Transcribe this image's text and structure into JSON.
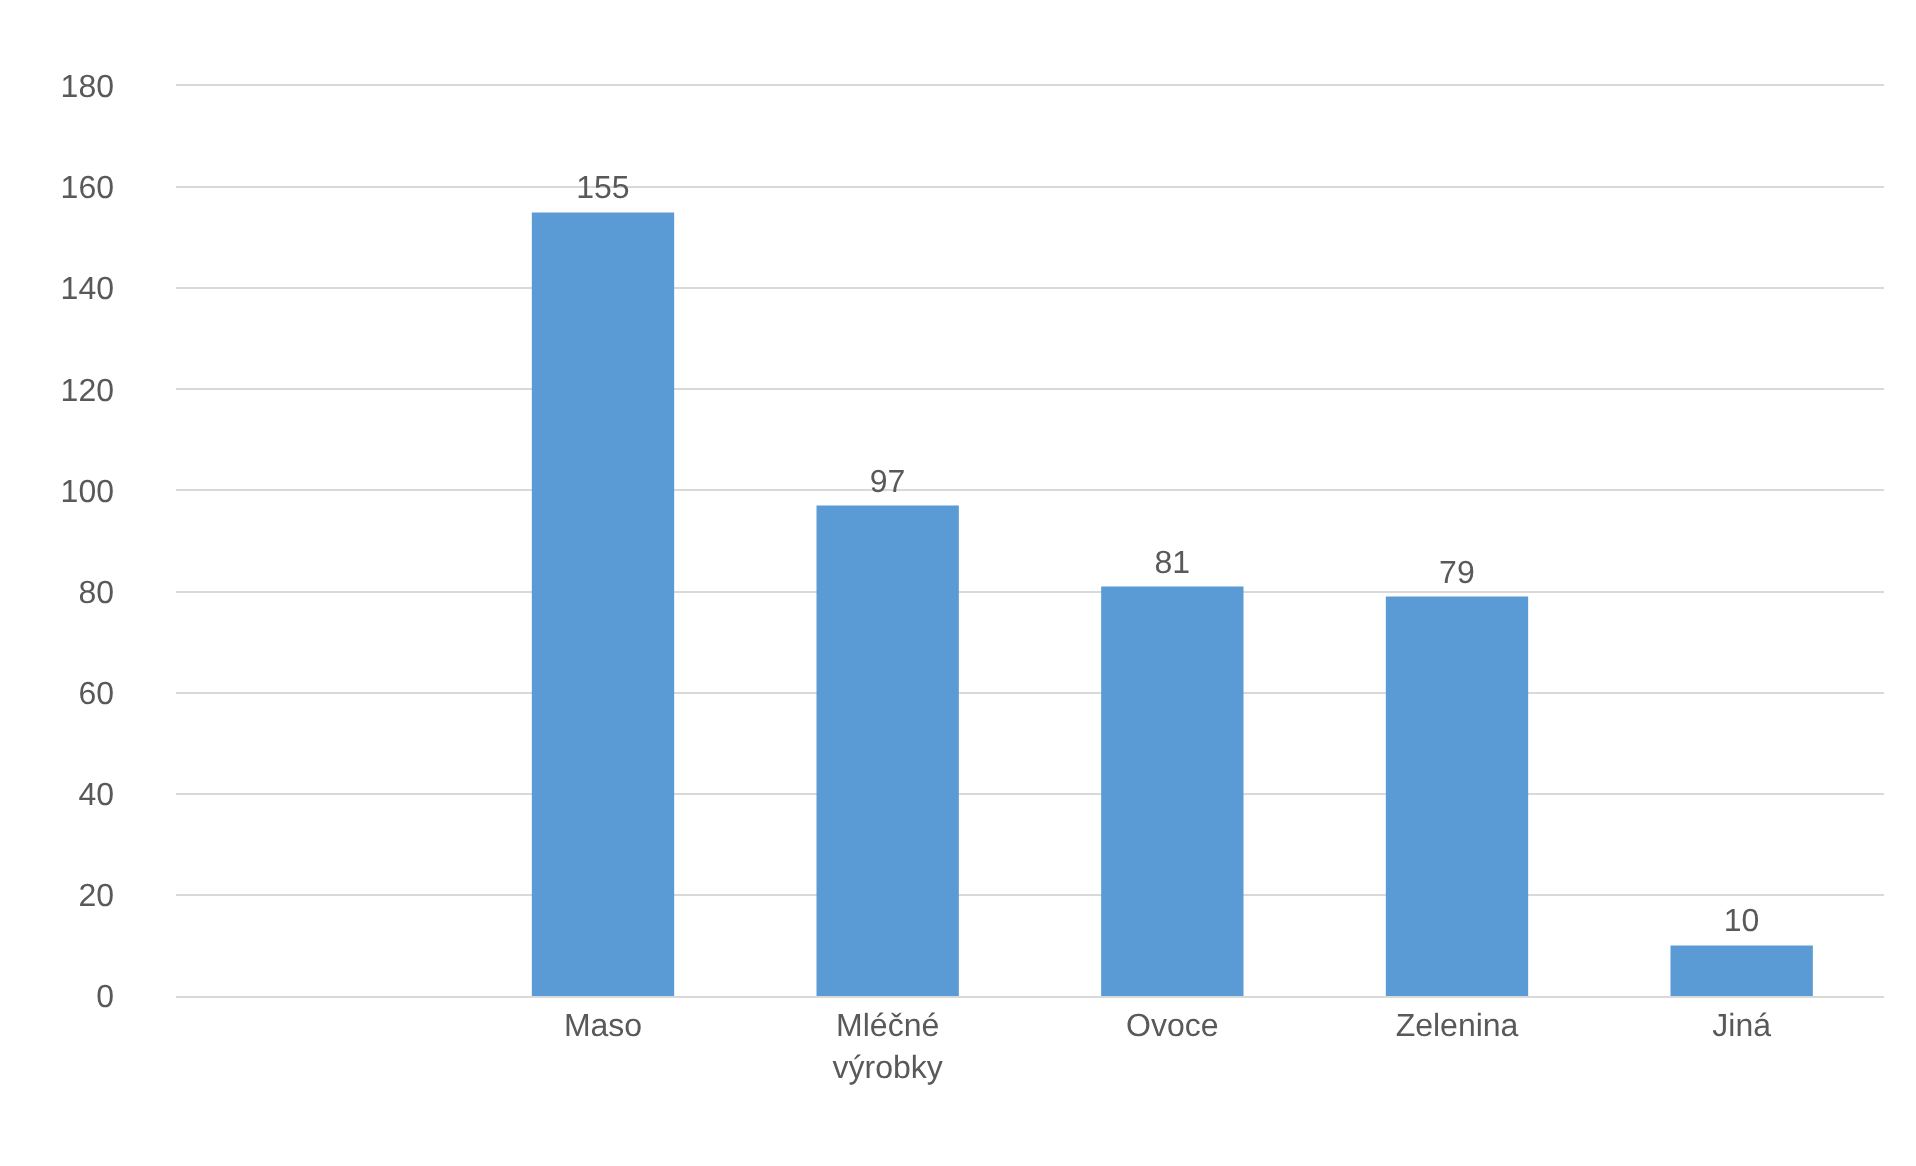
{
  "chart_data": {
    "type": "bar",
    "categories": [
      null,
      "Maso",
      "Mléčné výrobky",
      "Ovoce",
      "Zelenina",
      "Jiná"
    ],
    "values": [
      null,
      155,
      97,
      81,
      79,
      10
    ],
    "color": "#5b9bd5",
    "ylim": [
      0,
      180
    ],
    "yticks": [
      0,
      20,
      40,
      60,
      80,
      100,
      120,
      140,
      160,
      180
    ],
    "grid": "y",
    "data_labels": true
  }
}
